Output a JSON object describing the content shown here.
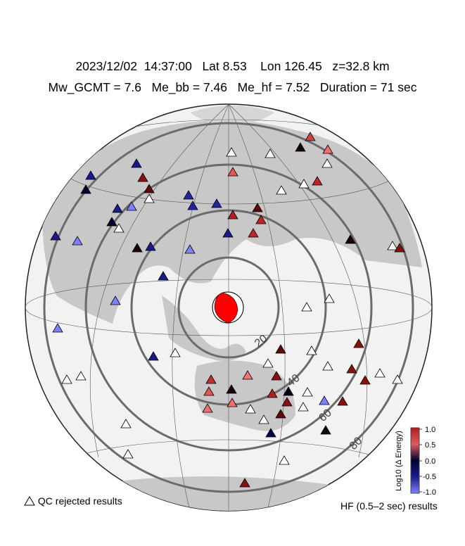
{
  "header": {
    "line1": "2023/12/02  14:37:00   Lat 8.53    Lon 126.45   z=32.8 km",
    "line2": "Mw_GCMT = 7.6   Me_bb = 7.46   Me_hf = 7.52   Duration = 71 sec"
  },
  "map": {
    "distance_rings": [
      {
        "deg": 20,
        "label": "20"
      },
      {
        "deg": 40,
        "label": "40"
      },
      {
        "deg": 60,
        "label": "60"
      },
      {
        "deg": 80,
        "label": "80"
      }
    ],
    "beachball_colors": {
      "compression": "#ff0000",
      "dilatation": "#ffffff"
    }
  },
  "legend": {
    "qc_label": "QC rejected results",
    "hf_label": "HF (0.5–2 sec) results"
  },
  "colorbar": {
    "title": "Log10 (Δ Energy)",
    "ticks": [
      "1.0",
      "0.5",
      "0.0",
      "-0.5",
      "-1.0"
    ],
    "range": [
      -1.0,
      1.0
    ],
    "colors": [
      "#b31a1a",
      "#e05a5a",
      "#000033",
      "#1a1a8c",
      "#8080ff"
    ]
  }
}
